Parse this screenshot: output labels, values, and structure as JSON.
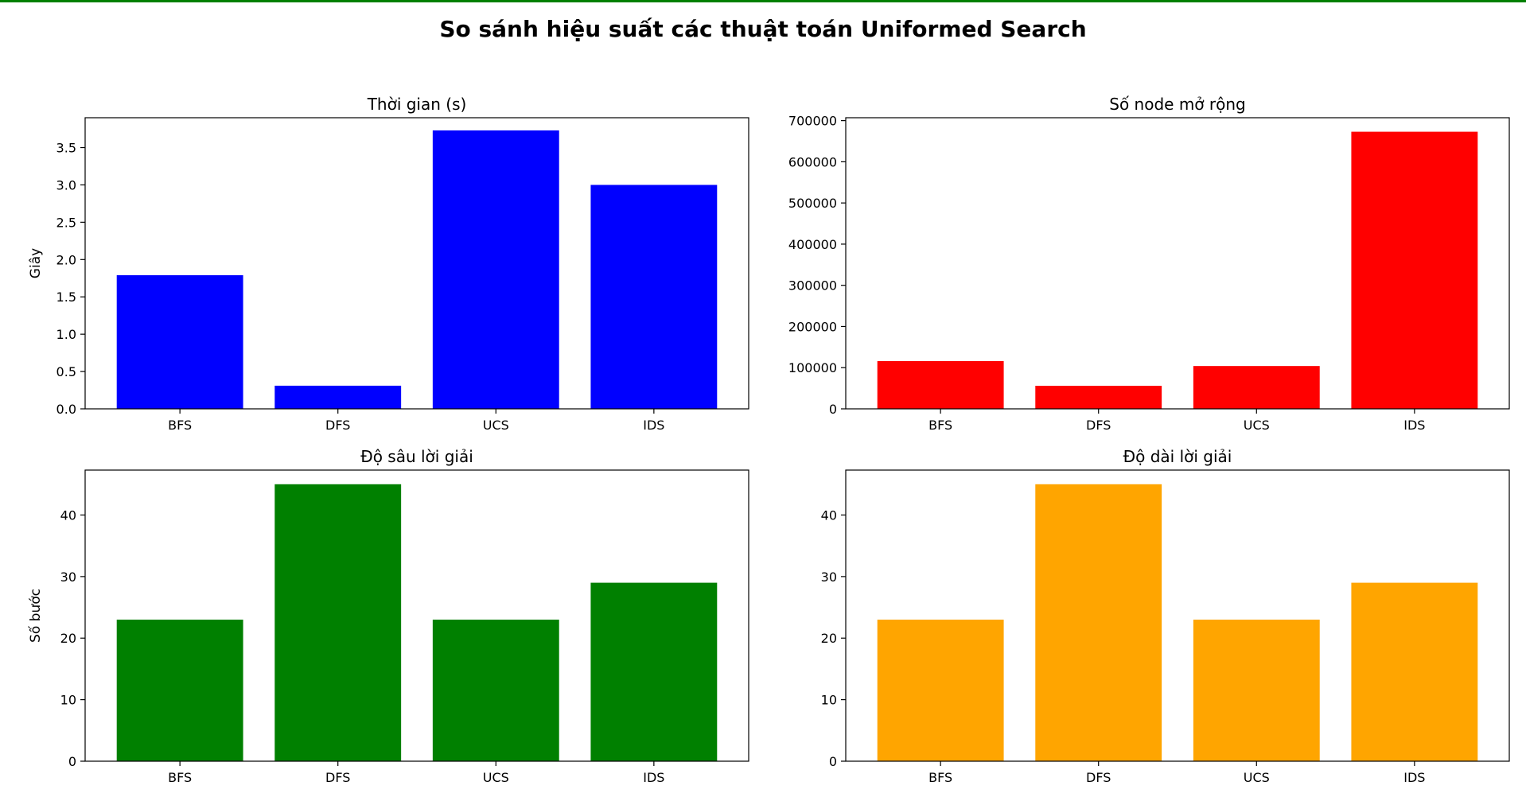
{
  "figure": {
    "title": "So sánh hiệu suất các thuật toán Uniformed Search",
    "top_border_color": "#008000"
  },
  "chart_data": [
    {
      "type": "bar",
      "title": "Thời gian (s)",
      "xlabel": "",
      "ylabel": "Giây",
      "categories": [
        "BFS",
        "DFS",
        "UCS",
        "IDS"
      ],
      "values": [
        1.79,
        0.31,
        3.73,
        3.0
      ],
      "ylim": [
        0,
        3.9
      ],
      "yticks": [
        0.0,
        0.5,
        1.0,
        1.5,
        2.0,
        2.5,
        3.0,
        3.5
      ],
      "ytick_labels": [
        "0.0",
        "0.5",
        "1.0",
        "1.5",
        "2.0",
        "2.5",
        "3.0",
        "3.5"
      ],
      "color": "#0000ff",
      "grid": false
    },
    {
      "type": "bar",
      "title": "Số node mở rộng",
      "xlabel": "",
      "ylabel": "",
      "categories": [
        "BFS",
        "DFS",
        "UCS",
        "IDS"
      ],
      "values": [
        116000,
        56000,
        104000,
        673000
      ],
      "ylim": [
        0,
        707000
      ],
      "yticks": [
        0,
        100000,
        200000,
        300000,
        400000,
        500000,
        600000,
        700000
      ],
      "ytick_labels": [
        "0",
        "100000",
        "200000",
        "300000",
        "400000",
        "500000",
        "600000",
        "700000"
      ],
      "color": "#ff0000",
      "grid": false
    },
    {
      "type": "bar",
      "title": "Độ sâu lời giải",
      "xlabel": "",
      "ylabel": "Số bước",
      "categories": [
        "BFS",
        "DFS",
        "UCS",
        "IDS"
      ],
      "values": [
        23,
        45,
        23,
        29
      ],
      "ylim": [
        0,
        47.3
      ],
      "yticks": [
        0,
        10,
        20,
        30,
        40
      ],
      "ytick_labels": [
        "0",
        "10",
        "20",
        "30",
        "40"
      ],
      "color": "#008000",
      "grid": false
    },
    {
      "type": "bar",
      "title": "Độ dài lời giải",
      "xlabel": "",
      "ylabel": "",
      "categories": [
        "BFS",
        "DFS",
        "UCS",
        "IDS"
      ],
      "values": [
        23,
        45,
        23,
        29
      ],
      "ylim": [
        0,
        47.3
      ],
      "yticks": [
        0,
        10,
        20,
        30,
        40
      ],
      "ytick_labels": [
        "0",
        "10",
        "20",
        "30",
        "40"
      ],
      "color": "#ffa500",
      "grid": false
    }
  ]
}
